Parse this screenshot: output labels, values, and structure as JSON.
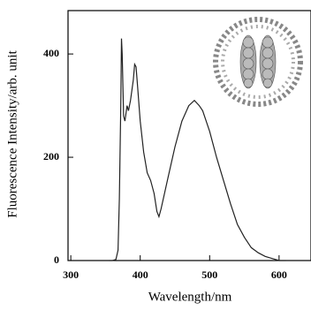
{
  "chart_data": {
    "type": "line",
    "xlabel": "Wavelength/nm",
    "ylabel": "Fluorescence Intensity/arb. unit",
    "x": [
      355,
      360,
      365,
      368,
      370,
      372,
      373,
      374,
      376,
      378,
      381,
      383,
      386,
      390,
      392,
      394,
      396,
      400,
      405,
      410,
      415,
      420,
      424,
      427,
      430,
      435,
      440,
      450,
      460,
      470,
      478,
      485,
      490,
      500,
      510,
      520,
      530,
      540,
      550,
      560,
      570,
      580,
      590,
      600,
      610
    ],
    "values": [
      0,
      0,
      2,
      20,
      120,
      300,
      430,
      400,
      280,
      270,
      300,
      290,
      310,
      350,
      380,
      375,
      340,
      270,
      210,
      170,
      155,
      130,
      95,
      85,
      100,
      130,
      160,
      220,
      270,
      300,
      310,
      300,
      290,
      250,
      200,
      155,
      110,
      70,
      45,
      25,
      15,
      8,
      4,
      0,
      0
    ],
    "color": "#222222",
    "xlim": [
      296,
      646
    ],
    "ylim": [
      0,
      484
    ],
    "xticks": [
      300,
      400,
      500,
      600
    ],
    "yticks": [
      0,
      200,
      400
    ]
  }
}
